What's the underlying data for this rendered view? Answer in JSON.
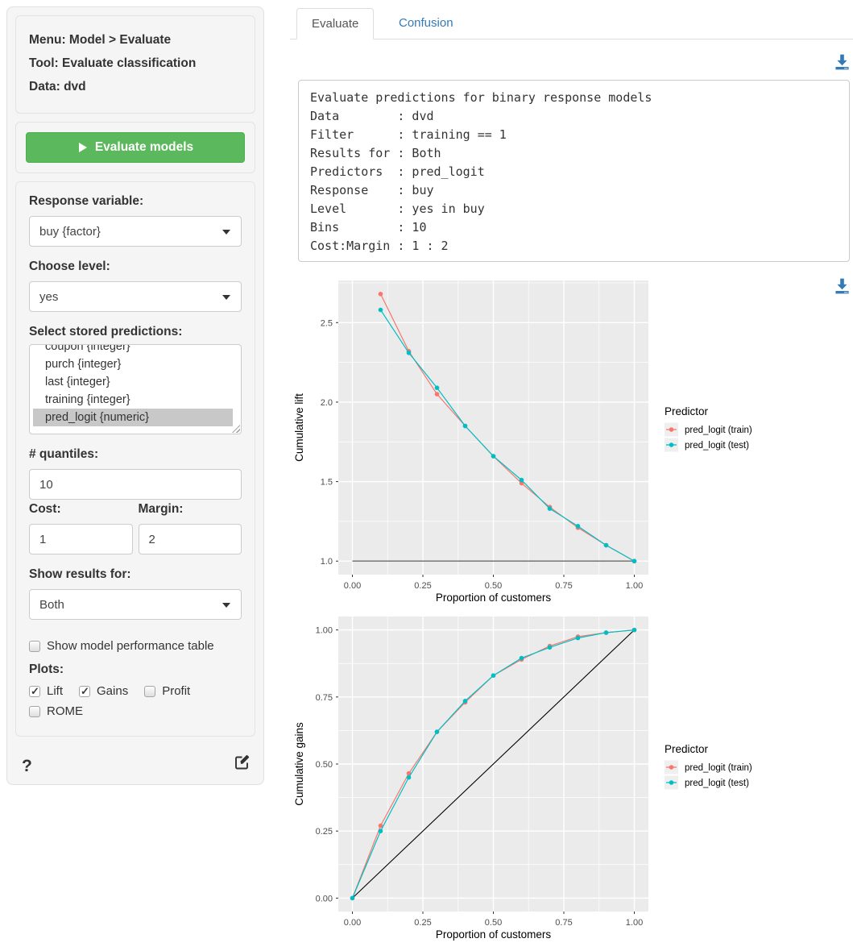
{
  "colors": {
    "accent_green": "#5cb85c",
    "link_blue": "#337ab7",
    "panel_bg": "#EBEBEB",
    "grid_white": "#ffffff",
    "train_color": "#F8766D",
    "test_color": "#00BFC4"
  },
  "sidebar": {
    "info": {
      "menu": "Menu: Model > Evaluate",
      "tool": "Tool: Evaluate classification",
      "data": "Data: dvd"
    },
    "evaluate_button": "Evaluate models",
    "response_variable": {
      "label": "Response variable:",
      "value": "buy {factor}"
    },
    "choose_level": {
      "label": "Choose level:",
      "value": "yes"
    },
    "predictions": {
      "label": "Select stored predictions:",
      "items": [
        {
          "label": "coupon {integer}",
          "selected": false
        },
        {
          "label": "purch {integer}",
          "selected": false
        },
        {
          "label": "last {integer}",
          "selected": false
        },
        {
          "label": "training {integer}",
          "selected": false
        },
        {
          "label": "pred_logit {numeric}",
          "selected": true
        }
      ]
    },
    "quantiles": {
      "label": "# quantiles:",
      "value": "10"
    },
    "cost": {
      "label": "Cost:",
      "value": "1"
    },
    "margin": {
      "label": "Margin:",
      "value": "2"
    },
    "show_results": {
      "label": "Show results for:",
      "value": "Both"
    },
    "performance_table": {
      "label": "Show model performance table",
      "checked": false
    },
    "plots": {
      "label": "Plots:",
      "options": [
        {
          "label": "Lift",
          "checked": true
        },
        {
          "label": "Gains",
          "checked": true
        },
        {
          "label": "Profit",
          "checked": false
        },
        {
          "label": "ROME",
          "checked": false
        }
      ]
    },
    "help": "?"
  },
  "tabs": [
    {
      "label": "Evaluate",
      "active": true
    },
    {
      "label": "Confusion",
      "active": false
    }
  ],
  "summary_lines": [
    "Evaluate predictions for binary response models",
    "Data        : dvd",
    "Filter      : training == 1",
    "Results for : Both",
    "Predictors  : pred_logit",
    "Response    : buy",
    "Level       : yes in buy",
    "Bins        : 10",
    "Cost:Margin : 1 : 2"
  ],
  "chart_data": [
    {
      "type": "line",
      "title": "",
      "xlabel": "Proportion of customers",
      "ylabel": "Cumulative lift",
      "legend_title": "Predictor",
      "legend_position": "right",
      "grid": true,
      "xlim": [
        -0.05,
        1.05
      ],
      "ylim": [
        0.915,
        2.765
      ],
      "x_ticks": [
        0.0,
        0.25,
        0.5,
        0.75,
        1.0
      ],
      "x_tick_labels": [
        "0.00",
        "0.25",
        "0.50",
        "0.75",
        "1.00"
      ],
      "y_ticks": [
        1.0,
        1.5,
        2.0,
        2.5
      ],
      "y_tick_labels": [
        "1.0",
        "1.5",
        "2.0",
        "2.5"
      ],
      "x_minor": [
        0.125,
        0.375,
        0.625,
        0.875
      ],
      "y_minor": [
        1.25,
        1.75,
        2.25,
        2.75
      ],
      "reference_line": {
        "type": "horizontal",
        "y": 1.0,
        "x1": 0,
        "x2": 1,
        "color": "#7f7f7f"
      },
      "series": [
        {
          "name": "pred_logit (train)",
          "color": "#F8766D",
          "x": [
            0.1,
            0.2,
            0.3,
            0.4,
            0.5,
            0.6,
            0.7,
            0.8,
            0.9,
            1.0
          ],
          "y": [
            2.68,
            2.32,
            2.05,
            1.85,
            1.66,
            1.49,
            1.34,
            1.21,
            1.1,
            1.0
          ]
        },
        {
          "name": "pred_logit (test)",
          "color": "#00BFC4",
          "x": [
            0.1,
            0.2,
            0.3,
            0.4,
            0.5,
            0.6,
            0.7,
            0.8,
            0.9,
            1.0
          ],
          "y": [
            2.58,
            2.31,
            2.09,
            1.85,
            1.66,
            1.51,
            1.33,
            1.22,
            1.1,
            1.0
          ]
        }
      ]
    },
    {
      "type": "line",
      "title": "",
      "xlabel": "Proportion of customers",
      "ylabel": "Cumulative gains",
      "legend_title": "Predictor",
      "legend_position": "right",
      "grid": true,
      "xlim": [
        -0.05,
        1.05
      ],
      "ylim": [
        -0.05,
        1.05
      ],
      "x_ticks": [
        0.0,
        0.25,
        0.5,
        0.75,
        1.0
      ],
      "x_tick_labels": [
        "0.00",
        "0.25",
        "0.50",
        "0.75",
        "1.00"
      ],
      "y_ticks": [
        0.0,
        0.25,
        0.5,
        0.75,
        1.0
      ],
      "y_tick_labels": [
        "0.00",
        "0.25",
        "0.50",
        "0.75",
        "1.00"
      ],
      "x_minor": [
        0.125,
        0.375,
        0.625,
        0.875
      ],
      "y_minor": [
        0.125,
        0.375,
        0.625,
        0.875
      ],
      "reference_line": {
        "type": "diagonal",
        "x1": 0,
        "y1": 0,
        "x2": 1,
        "y2": 1,
        "color": "#000000"
      },
      "series": [
        {
          "name": "pred_logit (train)",
          "color": "#F8766D",
          "x": [
            0.0,
            0.1,
            0.2,
            0.3,
            0.4,
            0.5,
            0.6,
            0.7,
            0.8,
            0.9,
            1.0
          ],
          "y": [
            0.0,
            0.27,
            0.465,
            0.62,
            0.73,
            0.83,
            0.89,
            0.94,
            0.975,
            0.99,
            1.0
          ]
        },
        {
          "name": "pred_logit (test)",
          "color": "#00BFC4",
          "x": [
            0.0,
            0.1,
            0.2,
            0.3,
            0.4,
            0.5,
            0.6,
            0.7,
            0.8,
            0.9,
            1.0
          ],
          "y": [
            0.0,
            0.25,
            0.45,
            0.62,
            0.735,
            0.83,
            0.895,
            0.935,
            0.97,
            0.99,
            1.0
          ]
        }
      ]
    }
  ]
}
